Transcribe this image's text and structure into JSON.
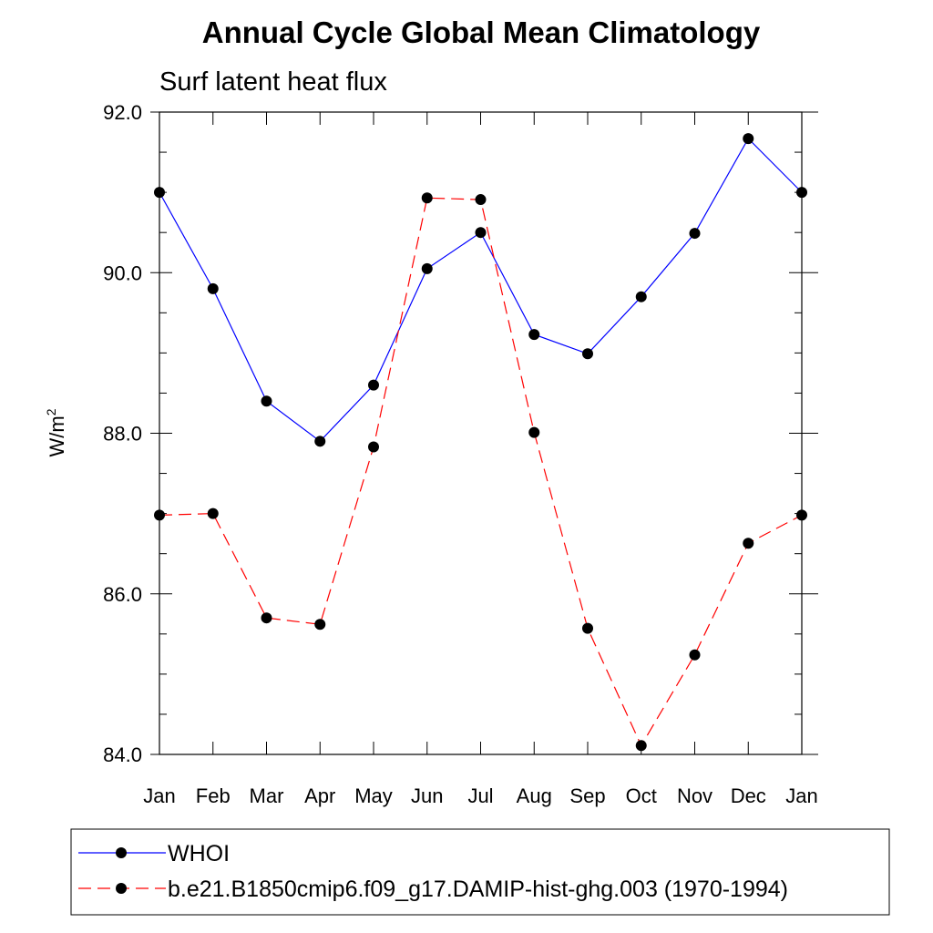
{
  "chart_data": {
    "type": "line",
    "title": "Annual Cycle Global Mean Climatology",
    "subtitle": "Surf latent heat flux",
    "ylabel": "W/m",
    "ylabel_sup": "2",
    "xlabel": "",
    "ylim": [
      84,
      92
    ],
    "yticks": [
      84,
      86,
      88,
      90,
      92
    ],
    "ytick_labels": [
      "84.0",
      "86.0",
      "88.0",
      "90.0",
      "92.0"
    ],
    "categories": [
      "Jan",
      "Feb",
      "Mar",
      "Apr",
      "May",
      "Jun",
      "Jul",
      "Aug",
      "Sep",
      "Oct",
      "Nov",
      "Dec",
      "Jan"
    ],
    "grid": false,
    "legend_position": "bottom",
    "series": [
      {
        "name": "WHOI",
        "color": "#0000ff",
        "dash": "solid",
        "marker": "circle",
        "values": [
          91.0,
          89.8,
          88.4,
          87.9,
          88.6,
          90.05,
          90.5,
          89.23,
          88.99,
          89.7,
          90.49,
          91.67,
          91.0
        ]
      },
      {
        "name": "b.e21.B1850cmip6.f09_g17.DAMIP-hist-ghg.003 (1970-1994)",
        "color": "#ff0000",
        "dash": "dashed",
        "marker": "circle",
        "values": [
          86.98,
          87.0,
          85.7,
          85.62,
          87.83,
          90.93,
          90.91,
          88.01,
          85.57,
          84.11,
          85.24,
          86.63,
          86.98
        ]
      }
    ]
  }
}
